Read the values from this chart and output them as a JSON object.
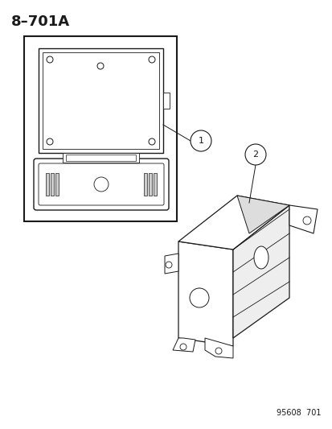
{
  "title": "8–701A",
  "footer": "95608  701",
  "background_color": "#ffffff",
  "line_color": "#1a1a1a",
  "fig_width": 4.14,
  "fig_height": 5.33,
  "dpi": 100
}
